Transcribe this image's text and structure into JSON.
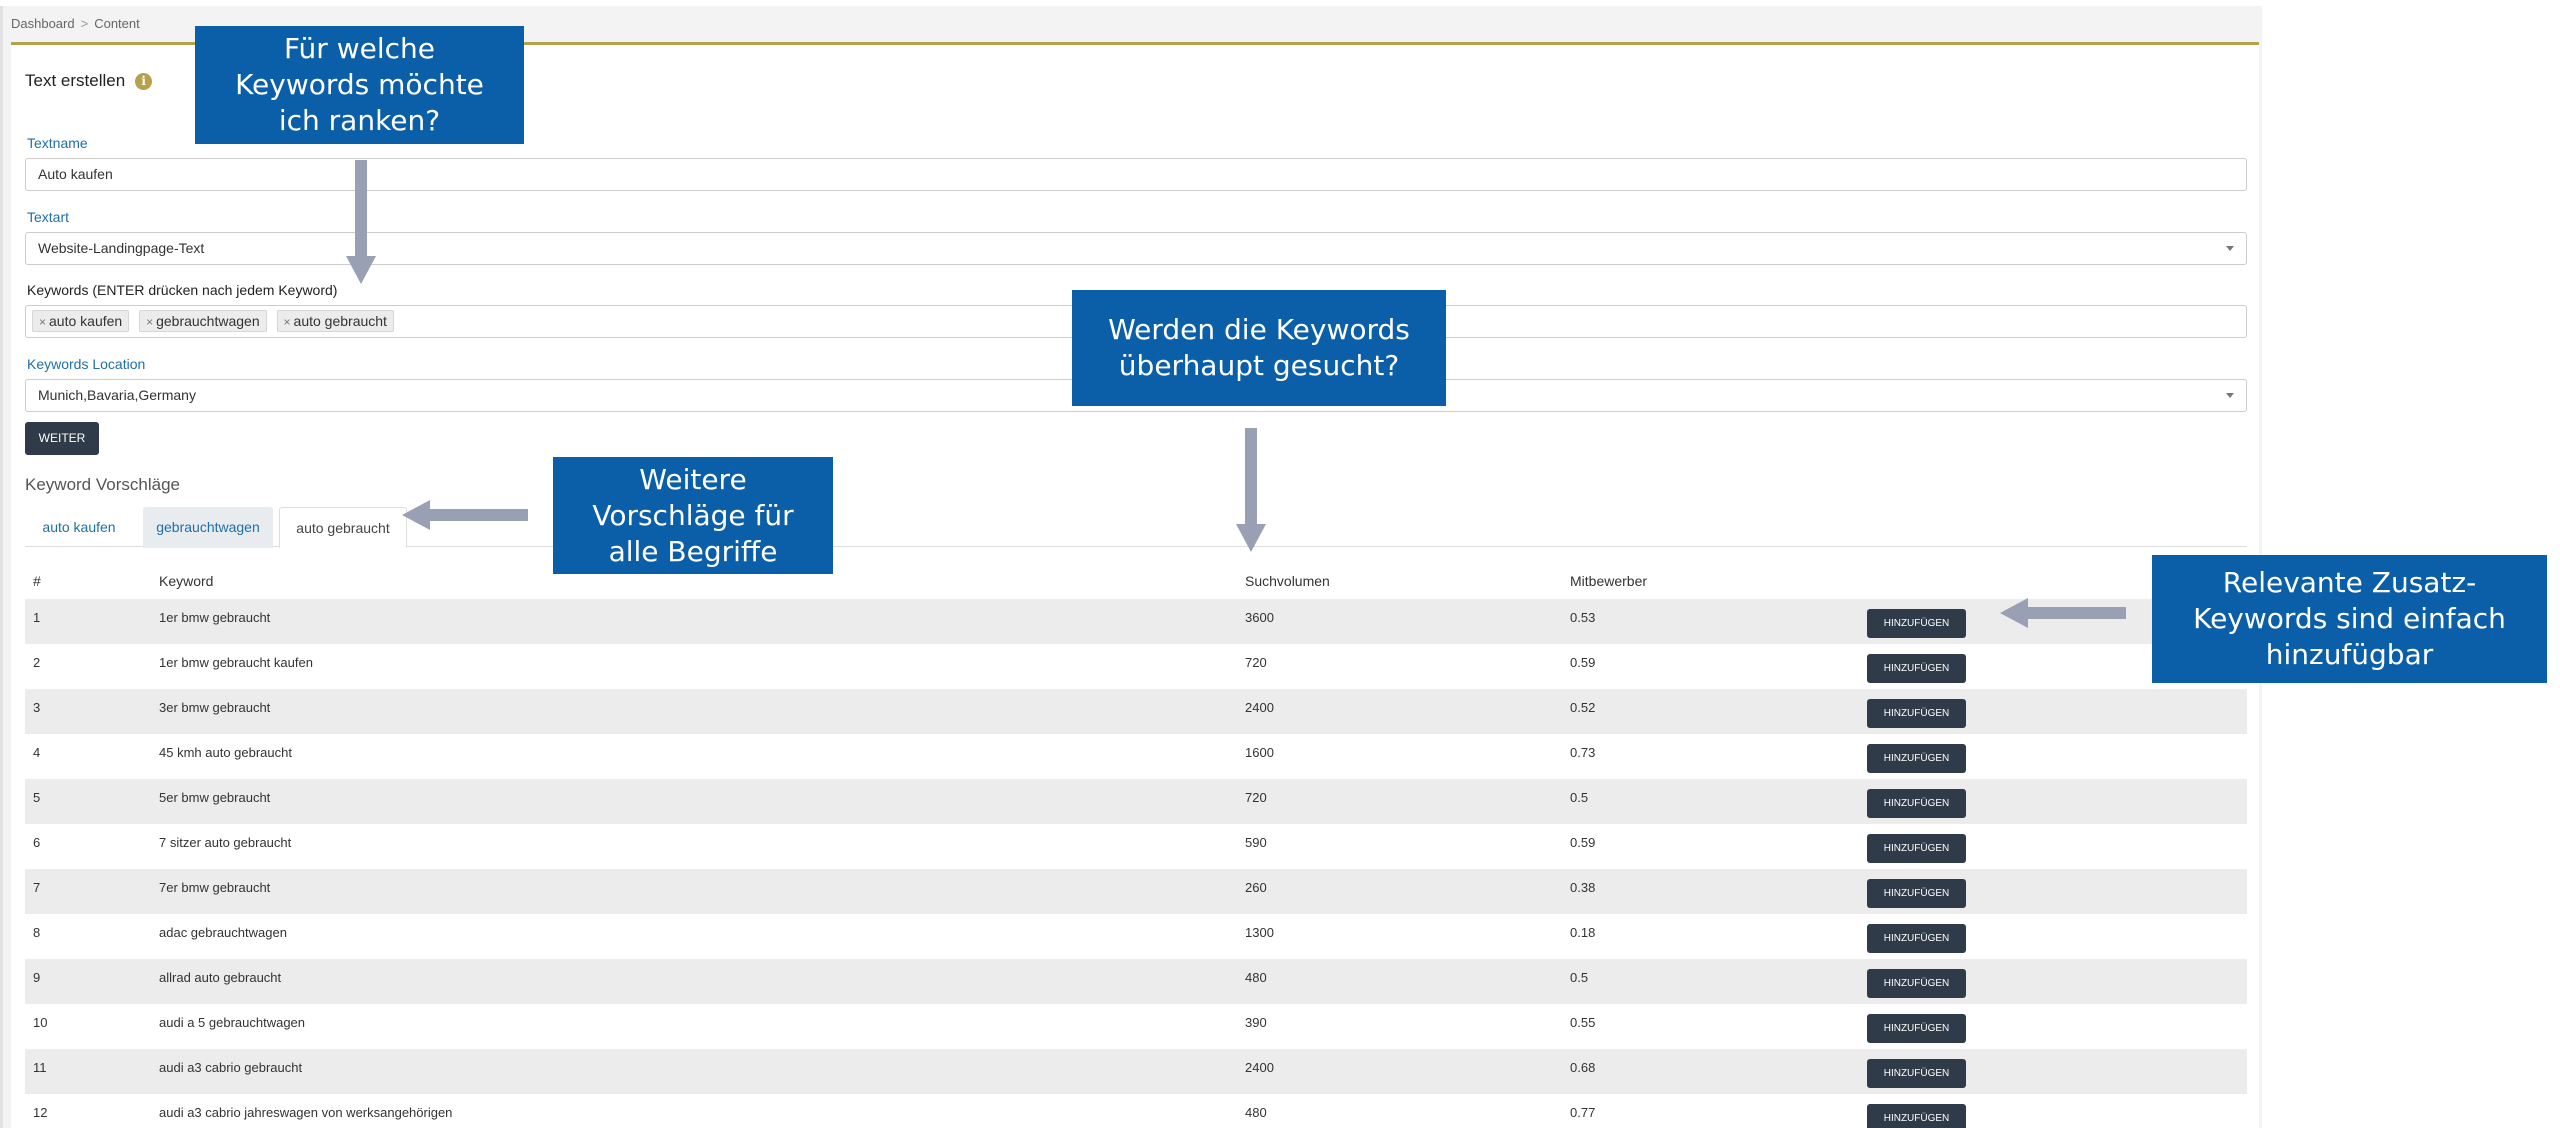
{
  "breadcrumb": {
    "items": [
      "Dashboard",
      "Content"
    ],
    "separator": ">"
  },
  "form": {
    "title": "Text erstellen",
    "textname": {
      "label": "Textname",
      "value": "Auto kaufen"
    },
    "textart": {
      "label": "Textart",
      "value": "Website-Landingpage-Text"
    },
    "keywords": {
      "label": "Keywords (ENTER drücken nach jedem Keyword)",
      "tags": [
        "auto kaufen",
        "gebrauchtwagen",
        "auto gebraucht"
      ],
      "remove_glyph": "×"
    },
    "location": {
      "label": "Keywords Location",
      "value": "Munich,Bavaria,Germany"
    },
    "submit_label": "WEITER"
  },
  "suggestions": {
    "title": "Keyword Vorschläge",
    "tabs": [
      "auto kaufen",
      "gebrauchtwagen",
      "auto gebraucht"
    ],
    "active_tab": 2,
    "columns": {
      "num": "#",
      "keyword": "Keyword",
      "volume": "Suchvolumen",
      "competition": "Mitbewerber"
    },
    "add_label": "HINZUFÜGEN",
    "rows": [
      {
        "num": "1",
        "keyword": "1er bmw gebraucht",
        "volume": "3600",
        "competition": "0.53"
      },
      {
        "num": "2",
        "keyword": "1er bmw gebraucht kaufen",
        "volume": "720",
        "competition": "0.59"
      },
      {
        "num": "3",
        "keyword": "3er bmw gebraucht",
        "volume": "2400",
        "competition": "0.52"
      },
      {
        "num": "4",
        "keyword": "45 kmh auto gebraucht",
        "volume": "1600",
        "competition": "0.73"
      },
      {
        "num": "5",
        "keyword": "5er bmw gebraucht",
        "volume": "720",
        "competition": "0.5"
      },
      {
        "num": "6",
        "keyword": "7 sitzer auto gebraucht",
        "volume": "590",
        "competition": "0.59"
      },
      {
        "num": "7",
        "keyword": "7er bmw gebraucht",
        "volume": "260",
        "competition": "0.38"
      },
      {
        "num": "8",
        "keyword": "adac gebrauchtwagen",
        "volume": "1300",
        "competition": "0.18"
      },
      {
        "num": "9",
        "keyword": "allrad auto gebraucht",
        "volume": "480",
        "competition": "0.5"
      },
      {
        "num": "10",
        "keyword": "audi a 5 gebrauchtwagen",
        "volume": "390",
        "competition": "0.55"
      },
      {
        "num": "11",
        "keyword": "audi a3 cabrio gebraucht",
        "volume": "2400",
        "competition": "0.68"
      },
      {
        "num": "12",
        "keyword": "audi a3 cabrio jahreswagen von werksangehörigen",
        "volume": "480",
        "competition": "0.77"
      }
    ]
  },
  "annotations": {
    "keywords": [
      "Für welche",
      "Keywords möchte",
      "ich ranken?"
    ],
    "searched": [
      "Werden die Keywords",
      "überhaupt gesucht?"
    ],
    "more": [
      "Weitere",
      "Vorschläge für",
      "alle Begriffe"
    ],
    "relevant": [
      "Relevante Zusatz-",
      "Keywords sind einfach",
      "hinzufügbar"
    ]
  },
  "colors": {
    "accent": "#b5a24a",
    "link": "#1f6fa8",
    "button": "#2f3b48",
    "callout": "#0b5ea8",
    "arrow": "#9aa0b3"
  },
  "icons": {
    "info": "info-icon",
    "caret": "chevron-down-icon",
    "remove": "close-icon"
  }
}
